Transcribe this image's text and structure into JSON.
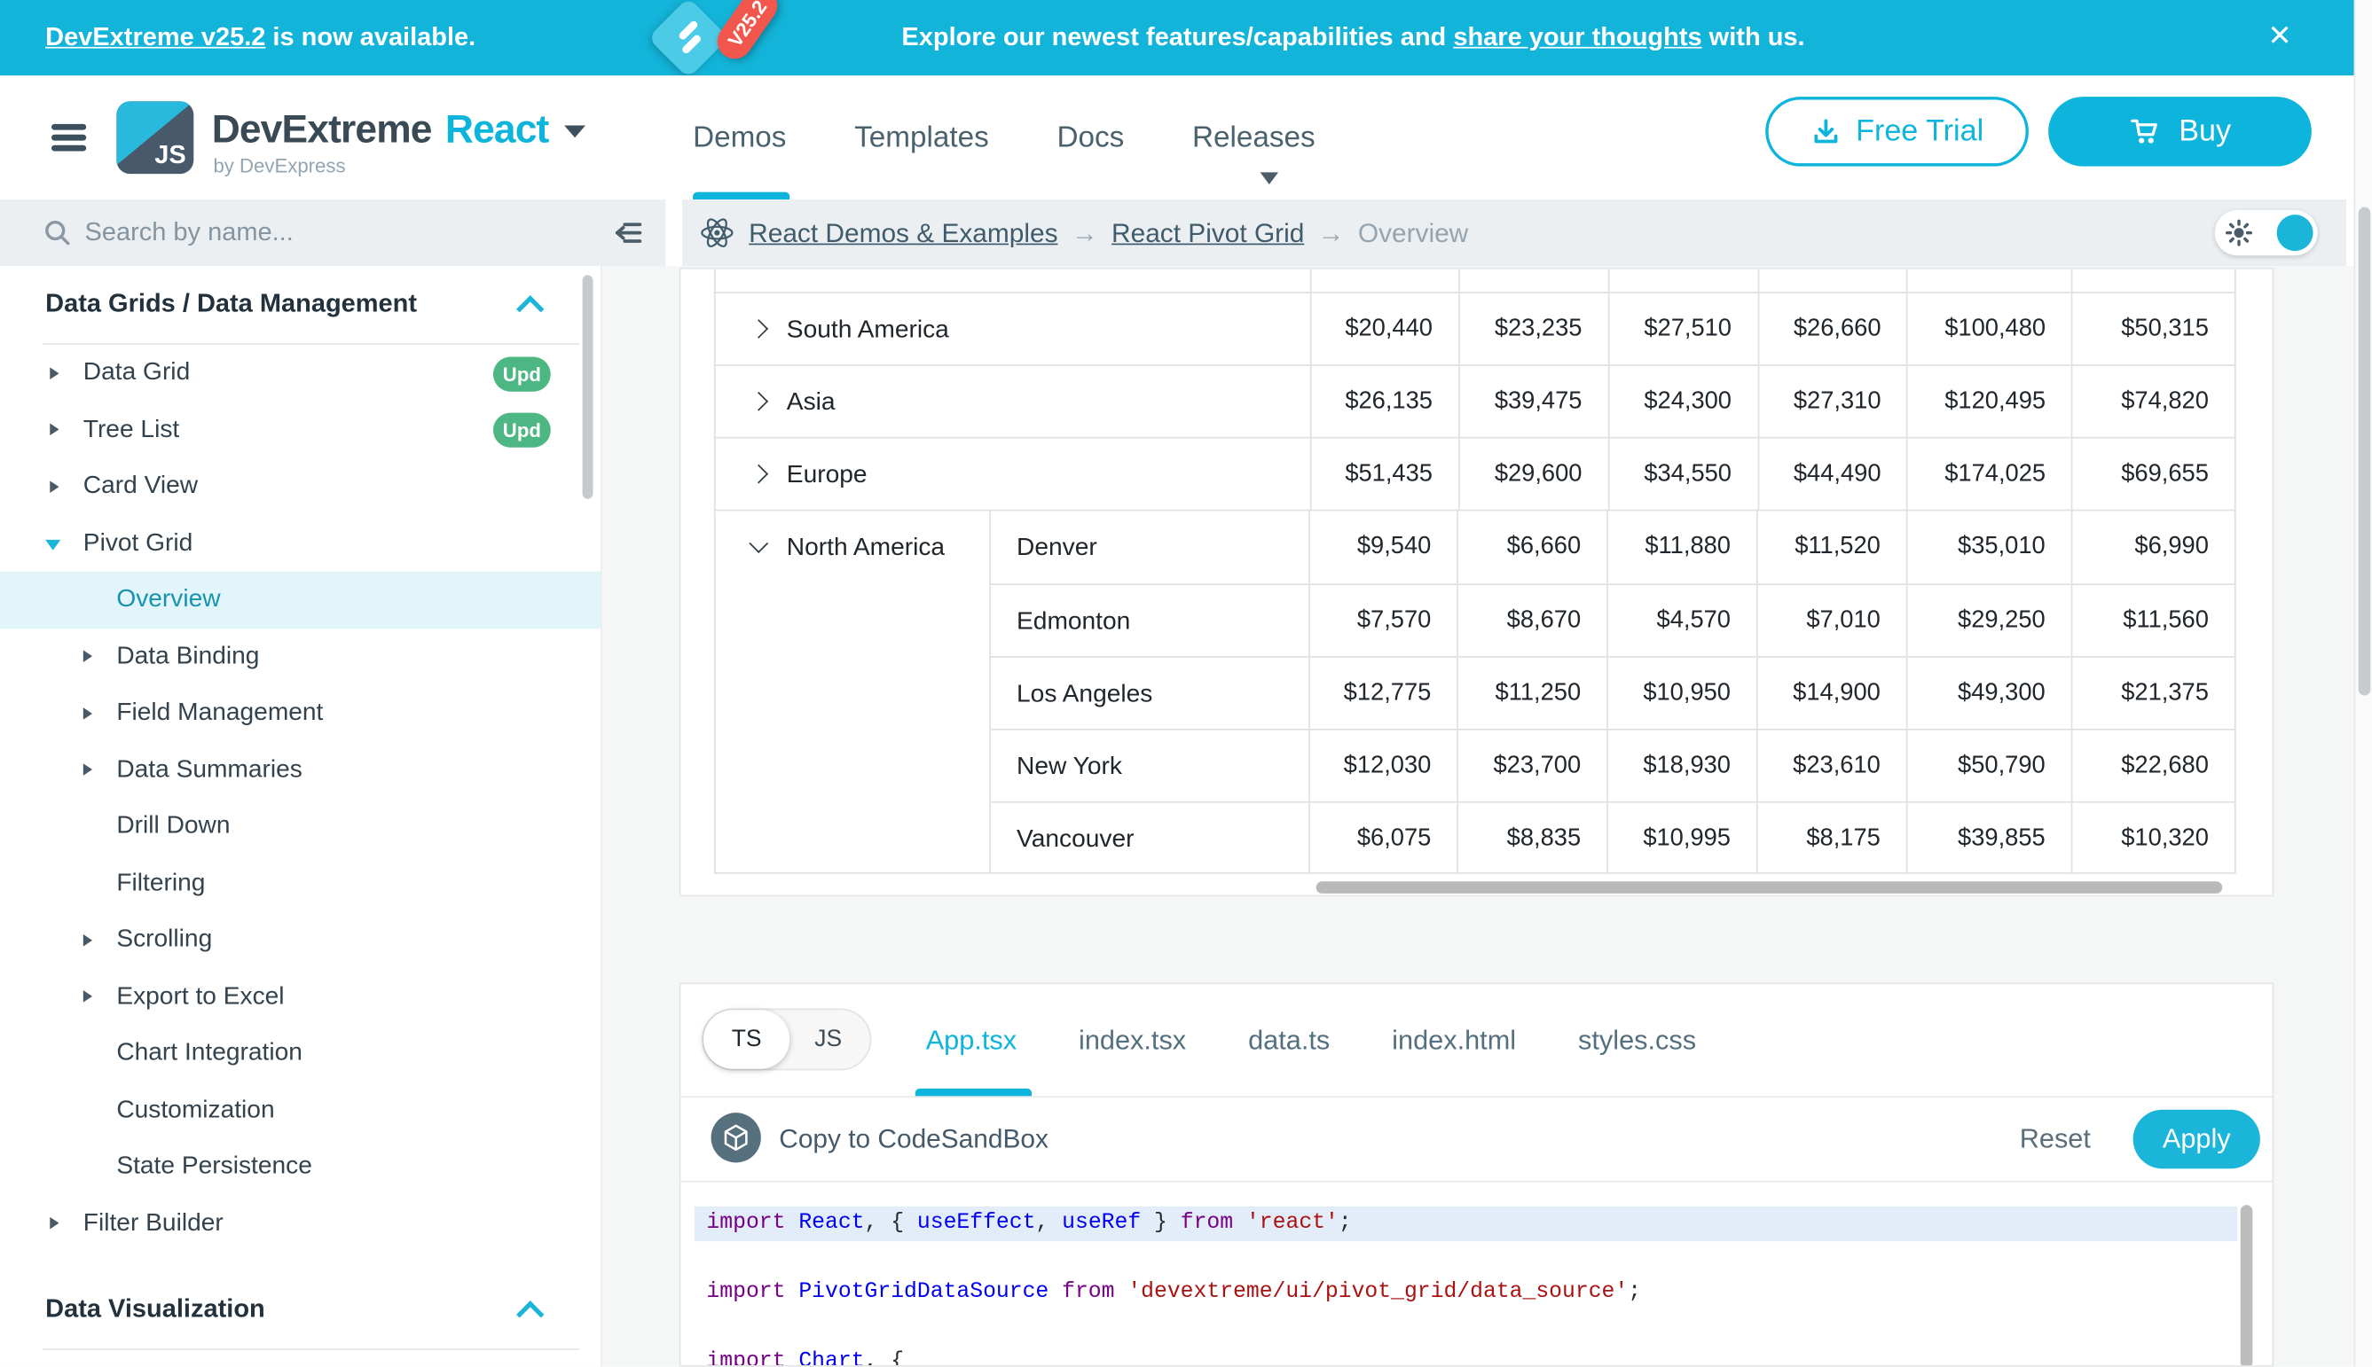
{
  "colors": {
    "accent": "#0db4dc",
    "banner": "#13b4d9",
    "badge_green": "#4cb782",
    "selected_item": "#1793ae",
    "code_keyword": "#770088",
    "code_identifier": "#0000f0",
    "code_string": "#aa1111"
  },
  "banner": {
    "link": "DevExtreme v25.2",
    "after_link": " is now available.",
    "badge": "V25.2",
    "msg_before": "Explore our newest features/capabilities and ",
    "msg_link": "share your thoughts",
    "msg_after": " with us.",
    "close": "✕"
  },
  "header": {
    "logo_text": "JS",
    "brand": "DevExtreme",
    "framework": "React",
    "byline": "by DevExpress",
    "nav": [
      {
        "label": "Demos",
        "active": true
      },
      {
        "label": "Templates",
        "active": false
      },
      {
        "label": "Docs",
        "active": false
      },
      {
        "label": "Releases",
        "active": false,
        "dropdown": true
      }
    ],
    "free_trial": "Free Trial",
    "buy": "Buy"
  },
  "toolbar": {
    "search_placeholder": "Search by name...",
    "breadcrumbs": [
      {
        "label": "React Demos & Examples",
        "link": true
      },
      {
        "label": "React Pivot Grid",
        "link": true
      },
      {
        "label": "Overview",
        "link": false
      }
    ],
    "breadcrumb_separator": "→"
  },
  "sidebar": {
    "sections": [
      {
        "label": "Data Grids / Data Management",
        "expanded": true,
        "items": [
          {
            "label": "Data Grid",
            "caret": true,
            "badge": "Upd"
          },
          {
            "label": "Tree List",
            "caret": true,
            "badge": "Upd"
          },
          {
            "label": "Card View",
            "caret": true
          },
          {
            "label": "Pivot Grid",
            "caret": true,
            "expanded": true,
            "children": [
              {
                "label": "Overview",
                "selected": true
              },
              {
                "label": "Data Binding",
                "caret": true
              },
              {
                "label": "Field Management",
                "caret": true
              },
              {
                "label": "Data Summaries",
                "caret": true
              },
              {
                "label": "Drill Down"
              },
              {
                "label": "Filtering"
              },
              {
                "label": "Scrolling",
                "caret": true
              },
              {
                "label": "Export to Excel",
                "caret": true
              },
              {
                "label": "Chart Integration"
              },
              {
                "label": "Customization"
              },
              {
                "label": "State Persistence"
              }
            ]
          },
          {
            "label": "Filter Builder",
            "caret": true
          }
        ]
      },
      {
        "label": "Data Visualization",
        "expanded": true,
        "items": []
      }
    ]
  },
  "pivot_table": {
    "rows": [
      {
        "region": "South America",
        "expanded": false,
        "values": [
          "$20,440",
          "$23,235",
          "$27,510",
          "$26,660",
          "$100,480",
          "$50,315"
        ]
      },
      {
        "region": "Asia",
        "expanded": false,
        "values": [
          "$26,135",
          "$39,475",
          "$24,300",
          "$27,310",
          "$120,495",
          "$74,820"
        ]
      },
      {
        "region": "Europe",
        "expanded": false,
        "values": [
          "$51,435",
          "$29,600",
          "$34,550",
          "$44,490",
          "$174,025",
          "$69,655"
        ]
      },
      {
        "region": "North America",
        "expanded": true,
        "cities": [
          {
            "city": "Denver",
            "values": [
              "$9,540",
              "$6,660",
              "$11,880",
              "$11,520",
              "$35,010",
              "$6,990"
            ]
          },
          {
            "city": "Edmonton",
            "values": [
              "$7,570",
              "$8,670",
              "$4,570",
              "$7,010",
              "$29,250",
              "$11,560"
            ]
          },
          {
            "city": "Los Angeles",
            "values": [
              "$12,775",
              "$11,250",
              "$10,950",
              "$14,900",
              "$49,300",
              "$21,375"
            ]
          },
          {
            "city": "New York",
            "values": [
              "$12,030",
              "$23,700",
              "$18,930",
              "$23,610",
              "$50,790",
              "$22,680"
            ]
          },
          {
            "city": "Vancouver",
            "values": [
              "$6,075",
              "$8,835",
              "$10,995",
              "$8,175",
              "$39,855",
              "$10,320"
            ]
          }
        ]
      }
    ]
  },
  "code_panel": {
    "lang_toggle": {
      "ts": "TS",
      "js": "JS",
      "active": "TS"
    },
    "tabs": [
      {
        "label": "App.tsx",
        "active": true
      },
      {
        "label": "index.tsx",
        "active": false
      },
      {
        "label": "data.ts",
        "active": false
      },
      {
        "label": "index.html",
        "active": false
      },
      {
        "label": "styles.css",
        "active": false
      }
    ],
    "copy_label": "Copy to CodeSandBox",
    "reset": "Reset",
    "apply": "Apply",
    "lines": [
      {
        "hl": true,
        "tokens": [
          {
            "t": "kw",
            "s": "import"
          },
          {
            "t": "pl",
            "s": " "
          },
          {
            "t": "def",
            "s": "React"
          },
          {
            "t": "pl",
            "s": ", { "
          },
          {
            "t": "def",
            "s": "useEffect"
          },
          {
            "t": "pl",
            "s": ", "
          },
          {
            "t": "def",
            "s": "useRef"
          },
          {
            "t": "pl",
            "s": " } "
          },
          {
            "t": "kw",
            "s": "from"
          },
          {
            "t": "pl",
            "s": " "
          },
          {
            "t": "str",
            "s": "'react'"
          },
          {
            "t": "pl",
            "s": ";"
          }
        ]
      },
      {
        "hl": false,
        "tokens": []
      },
      {
        "hl": false,
        "tokens": [
          {
            "t": "kw",
            "s": "import"
          },
          {
            "t": "pl",
            "s": " "
          },
          {
            "t": "def",
            "s": "PivotGridDataSource"
          },
          {
            "t": "pl",
            "s": " "
          },
          {
            "t": "kw",
            "s": "from"
          },
          {
            "t": "pl",
            "s": " "
          },
          {
            "t": "str",
            "s": "'devextreme/ui/pivot_grid/data_source'"
          },
          {
            "t": "pl",
            "s": ";"
          }
        ]
      },
      {
        "hl": false,
        "tokens": []
      },
      {
        "hl": false,
        "tokens": [
          {
            "t": "kw",
            "s": "import"
          },
          {
            "t": "pl",
            "s": " "
          },
          {
            "t": "def",
            "s": "Chart"
          },
          {
            "t": "pl",
            "s": ", {"
          }
        ]
      }
    ]
  }
}
